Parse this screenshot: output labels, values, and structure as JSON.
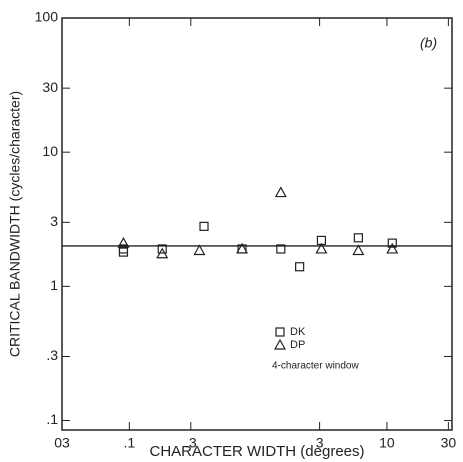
{
  "chart_data": {
    "type": "scatter",
    "annotation": "(b)",
    "note": "4-character window",
    "x_label": "CHARACTER WIDTH (degrees)",
    "y_label": "CRITICAL BANDWIDTH (cycles/character)",
    "log_x": true,
    "log_y": true,
    "xlim": [
      0.03,
      32
    ],
    "ylim": [
      0.085,
      100
    ],
    "xticks": [
      {
        "value": 0.03,
        "label": "03"
      },
      {
        "value": 0.1,
        "label": ".1"
      },
      {
        "value": 0.3,
        "label": ".3"
      },
      3,
      10,
      30
    ],
    "yticks": [
      {
        "value": 0.1,
        "label": ".1"
      },
      {
        "value": 0.3,
        "label": ".3"
      },
      1,
      3,
      10,
      30,
      100
    ],
    "fit_line": 2,
    "series": [
      {
        "name": "DK",
        "marker": "square",
        "color": "#222222",
        "x": [
          0.09,
          0.09,
          0.18,
          0.38,
          0.75,
          1.5,
          2.1,
          3.1,
          6,
          11
        ],
        "values": [
          1.9,
          1.8,
          1.9,
          2.8,
          1.9,
          1.9,
          1.4,
          2.2,
          2.3,
          2.1
        ]
      },
      {
        "name": "DP",
        "marker": "triangle",
        "color": "#222222",
        "x": [
          0.09,
          0.18,
          0.35,
          0.75,
          1.5,
          3.1,
          6,
          11
        ],
        "values": [
          2.1,
          1.75,
          1.85,
          1.9,
          5,
          1.9,
          1.85,
          1.9
        ]
      }
    ]
  }
}
